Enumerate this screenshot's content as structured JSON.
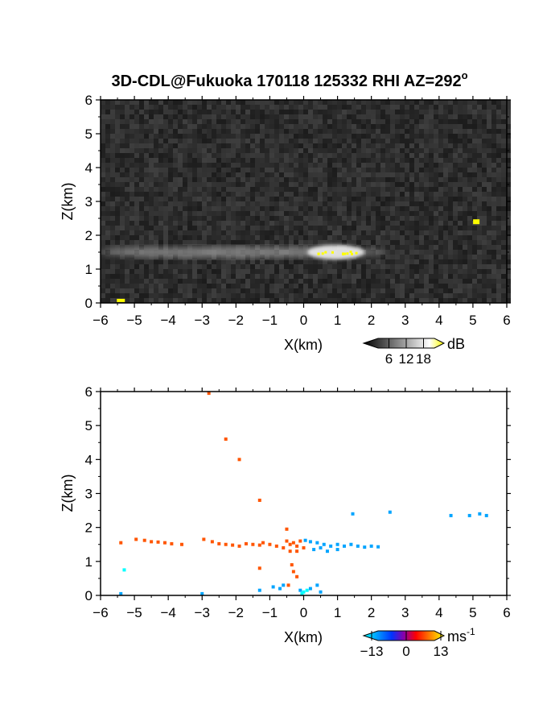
{
  "chart_data": [
    {
      "type": "heatmap",
      "title": "3D-CDL@Fukuoka 170118 125332 RHI AZ=292",
      "title_superscript": "o",
      "xlabel": "X(km)",
      "ylabel": "Z(km)",
      "xlim": [
        -6,
        6
      ],
      "ylim": [
        0,
        6
      ],
      "x_ticks": [
        "-6",
        "-5",
        "-4",
        "-3",
        "-2",
        "-1",
        "0",
        "1",
        "2",
        "3",
        "4",
        "5",
        "6"
      ],
      "y_ticks": [
        "0",
        "1",
        "2",
        "3",
        "4",
        "5",
        "6"
      ],
      "background_color": "#2a2a2a",
      "colorbar": {
        "unit": "dB",
        "ticks": [
          "6",
          "12",
          "18"
        ],
        "range": [
          0,
          24
        ],
        "colors": [
          "#000000",
          "#ffffff",
          "#ffff00"
        ]
      },
      "features": [
        {
          "kind": "layer",
          "x": [
            -6.0,
            2.4
          ],
          "z": 1.5,
          "intensity": "moderate-high"
        },
        {
          "kind": "strong-echo",
          "x": [
            0.3,
            1.6
          ],
          "z": 1.5,
          "value_db": 18
        },
        {
          "kind": "isolated-echo",
          "x": 5.1,
          "z": 2.4,
          "value_db": 18
        },
        {
          "kind": "surface-echo",
          "x": -5.4,
          "z": 0.05,
          "value_db": 18
        }
      ]
    },
    {
      "type": "scatter",
      "xlabel": "X(km)",
      "ylabel": "Z(km)",
      "xlim": [
        -6,
        6
      ],
      "ylim": [
        0,
        6
      ],
      "x_ticks": [
        "-6",
        "-5",
        "-4",
        "-3",
        "-2",
        "-1",
        "0",
        "1",
        "2",
        "3",
        "4",
        "5",
        "6"
      ],
      "y_ticks": [
        "0",
        "1",
        "2",
        "3",
        "4",
        "5",
        "6"
      ],
      "colorbar": {
        "unit": "ms",
        "unit_superscript": "-1",
        "ticks": [
          "-13",
          "0",
          "13"
        ],
        "range": [
          -13,
          13
        ],
        "colors": [
          "#00ffff",
          "#0033ff",
          "#ff0000",
          "#ffff00"
        ]
      },
      "series": [
        {
          "points": [
            [
              -5.4,
              1.55
            ],
            [
              -4.95,
              1.65
            ],
            [
              -4.7,
              1.62
            ],
            [
              -4.5,
              1.58
            ],
            [
              -4.3,
              1.57
            ],
            [
              -4.1,
              1.55
            ],
            [
              -3.9,
              1.52
            ],
            [
              -3.6,
              1.5
            ],
            [
              -2.95,
              1.65
            ],
            [
              -2.7,
              1.58
            ],
            [
              -2.5,
              1.52
            ],
            [
              -2.3,
              1.5
            ],
            [
              -2.1,
              1.48
            ],
            [
              -1.9,
              1.45
            ],
            [
              -1.7,
              1.52
            ],
            [
              -1.5,
              1.5
            ],
            [
              -1.3,
              1.48
            ],
            [
              -1.2,
              1.55
            ],
            [
              -1.0,
              1.5
            ],
            [
              -0.8,
              1.45
            ],
            [
              -0.6,
              1.4
            ],
            [
              -0.4,
              1.5
            ],
            [
              -0.2,
              1.45
            ],
            [
              0.0,
              1.4
            ],
            [
              -0.5,
              1.6
            ],
            [
              -0.3,
              1.55
            ],
            [
              -0.1,
              1.6
            ],
            [
              -0.2,
              1.3
            ],
            [
              -0.4,
              1.3
            ],
            [
              -0.35,
              0.9
            ],
            [
              -0.3,
              0.7
            ],
            [
              -0.2,
              0.55
            ],
            [
              -0.45,
              0.3
            ],
            [
              -0.5,
              1.95
            ],
            [
              -1.3,
              0.8
            ],
            [
              -2.8,
              5.95
            ],
            [
              -2.3,
              4.6
            ],
            [
              -1.9,
              4.0
            ],
            [
              -1.3,
              2.8
            ]
          ],
          "value": 7
        },
        {
          "points": [
            [
              0.05,
              1.62
            ],
            [
              0.2,
              1.58
            ],
            [
              0.4,
              1.55
            ],
            [
              0.6,
              1.5
            ],
            [
              0.8,
              1.45
            ],
            [
              1.0,
              1.5
            ],
            [
              1.2,
              1.45
            ],
            [
              1.4,
              1.5
            ],
            [
              1.6,
              1.45
            ],
            [
              1.8,
              1.42
            ],
            [
              2.0,
              1.45
            ],
            [
              2.2,
              1.43
            ],
            [
              0.3,
              1.35
            ],
            [
              0.5,
              1.4
            ],
            [
              0.7,
              1.3
            ],
            [
              1.0,
              1.35
            ],
            [
              1.45,
              2.4
            ],
            [
              2.55,
              2.45
            ],
            [
              4.35,
              2.35
            ],
            [
              4.9,
              2.35
            ],
            [
              5.2,
              2.4
            ],
            [
              5.4,
              2.35
            ],
            [
              -0.9,
              0.25
            ],
            [
              -0.7,
              0.2
            ],
            [
              -1.3,
              0.15
            ],
            [
              -0.6,
              0.3
            ],
            [
              0.4,
              0.3
            ],
            [
              0.5,
              0.1
            ],
            [
              -5.4,
              0.05
            ],
            [
              -3.0,
              0.05
            ],
            [
              -0.1,
              0.15
            ],
            [
              0.2,
              0.2
            ]
          ],
          "value": -9
        },
        {
          "points": [
            [
              -5.3,
              0.75
            ],
            [
              0.0,
              0.1
            ],
            [
              0.1,
              0.15
            ],
            [
              -0.05,
              0.05
            ]
          ],
          "value": -13
        }
      ]
    }
  ]
}
